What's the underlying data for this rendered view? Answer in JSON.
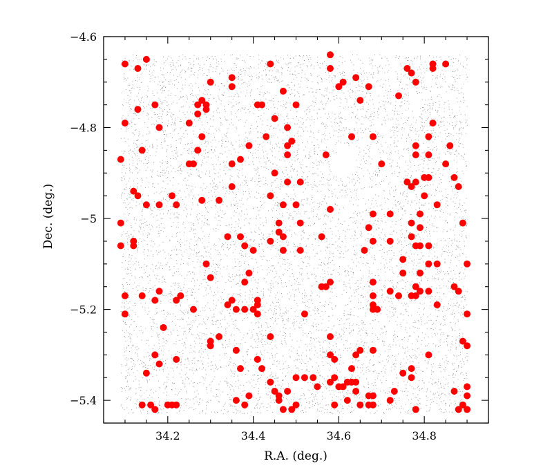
{
  "chart_data": {
    "type": "scatter",
    "xlabel": "R.A. (deg.)",
    "ylabel": "Dec. (deg.)",
    "xlim": [
      34.05,
      34.95
    ],
    "ylim": [
      -5.45,
      -4.6
    ],
    "x_ticks": [
      34.2,
      34.4,
      34.6,
      34.8
    ],
    "x_tick_labels": [
      "34.2",
      "34.4",
      "34.6",
      "34.8"
    ],
    "y_ticks": [
      -4.6,
      -4.8,
      -5,
      -5.2,
      -5.4
    ],
    "y_tick_labels": [
      "−4.6",
      "−4.8",
      "−5",
      "−5.2",
      "−5.4"
    ],
    "background_field": {
      "ra_range": [
        34.09,
        34.9
      ],
      "dec_range": [
        -5.43,
        -4.64
      ],
      "color": "#888888",
      "hole_center": [
        34.61,
        -4.88
      ]
    },
    "series": [
      {
        "color": "#ff0000",
        "points": [
          [
            34.1,
            -4.66
          ],
          [
            34.13,
            -4.67
          ],
          [
            34.15,
            -4.65
          ],
          [
            34.13,
            -4.76
          ],
          [
            34.17,
            -4.75
          ],
          [
            34.18,
            -4.8
          ],
          [
            34.1,
            -4.79
          ],
          [
            34.09,
            -4.87
          ],
          [
            34.14,
            -4.85
          ],
          [
            34.12,
            -4.94
          ],
          [
            34.13,
            -4.95
          ],
          [
            34.15,
            -4.97
          ],
          [
            34.18,
            -4.97
          ],
          [
            34.21,
            -4.95
          ],
          [
            34.22,
            -4.97
          ],
          [
            34.09,
            -5.01
          ],
          [
            34.09,
            -5.06
          ],
          [
            34.12,
            -5.05
          ],
          [
            34.12,
            -5.06
          ],
          [
            34.28,
            -4.74
          ],
          [
            34.29,
            -4.75
          ],
          [
            34.27,
            -4.75
          ],
          [
            34.27,
            -4.77
          ],
          [
            34.29,
            -4.76
          ],
          [
            34.25,
            -4.79
          ],
          [
            34.28,
            -4.82
          ],
          [
            34.27,
            -4.85
          ],
          [
            34.25,
            -4.88
          ],
          [
            34.26,
            -4.88
          ],
          [
            34.28,
            -4.96
          ],
          [
            34.32,
            -4.96
          ],
          [
            34.3,
            -4.7
          ],
          [
            34.35,
            -4.69
          ],
          [
            34.35,
            -4.71
          ],
          [
            34.44,
            -4.66
          ],
          [
            34.42,
            -4.75
          ],
          [
            34.41,
            -4.75
          ],
          [
            34.47,
            -4.72
          ],
          [
            34.5,
            -4.75
          ],
          [
            34.45,
            -4.78
          ],
          [
            34.48,
            -4.8
          ],
          [
            34.49,
            -4.83
          ],
          [
            34.48,
            -4.84
          ],
          [
            34.43,
            -4.82
          ],
          [
            34.39,
            -4.84
          ],
          [
            34.37,
            -4.87
          ],
          [
            34.35,
            -4.88
          ],
          [
            34.48,
            -4.86
          ],
          [
            34.45,
            -4.9
          ],
          [
            34.48,
            -4.92
          ],
          [
            34.51,
            -4.92
          ],
          [
            34.35,
            -4.93
          ],
          [
            34.44,
            -4.95
          ],
          [
            34.47,
            -4.97
          ],
          [
            34.5,
            -4.97
          ],
          [
            34.51,
            -5.01
          ],
          [
            34.46,
            -5.01
          ],
          [
            34.46,
            -5.03
          ],
          [
            34.44,
            -5.05
          ],
          [
            34.47,
            -5.04
          ],
          [
            34.47,
            -5.07
          ],
          [
            34.34,
            -5.04
          ],
          [
            34.37,
            -5.04
          ],
          [
            34.38,
            -5.06
          ],
          [
            34.4,
            -5.07
          ],
          [
            34.51,
            -5.07
          ],
          [
            34.56,
            -5.04
          ],
          [
            34.58,
            -4.98
          ],
          [
            34.57,
            -4.86
          ],
          [
            34.58,
            -4.64
          ],
          [
            34.58,
            -4.67
          ],
          [
            34.6,
            -4.71
          ],
          [
            34.61,
            -4.7
          ],
          [
            34.64,
            -4.69
          ],
          [
            34.67,
            -4.71
          ],
          [
            34.65,
            -4.74
          ],
          [
            34.63,
            -4.82
          ],
          [
            34.68,
            -4.82
          ],
          [
            34.7,
            -4.88
          ],
          [
            34.68,
            -4.99
          ],
          [
            34.67,
            -5.02
          ],
          [
            34.68,
            -5.05
          ],
          [
            34.66,
            -5.07
          ],
          [
            34.72,
            -4.99
          ],
          [
            34.72,
            -5.05
          ],
          [
            34.74,
            -4.73
          ],
          [
            34.76,
            -4.67
          ],
          [
            34.77,
            -4.68
          ],
          [
            34.78,
            -4.7
          ],
          [
            34.78,
            -4.84
          ],
          [
            34.78,
            -4.86
          ],
          [
            34.81,
            -4.82
          ],
          [
            34.81,
            -4.86
          ],
          [
            34.8,
            -4.91
          ],
          [
            34.81,
            -4.91
          ],
          [
            34.76,
            -4.92
          ],
          [
            34.77,
            -4.93
          ],
          [
            34.78,
            -4.92
          ],
          [
            34.8,
            -4.95
          ],
          [
            34.79,
            -4.99
          ],
          [
            34.77,
            -5.01
          ],
          [
            34.79,
            -5.02
          ],
          [
            34.77,
            -5.04
          ],
          [
            34.78,
            -5.06
          ],
          [
            34.79,
            -5.06
          ],
          [
            34.81,
            -5.06
          ],
          [
            34.82,
            -4.66
          ],
          [
            34.82,
            -4.67
          ],
          [
            34.85,
            -4.66
          ],
          [
            34.82,
            -4.79
          ],
          [
            34.86,
            -4.84
          ],
          [
            34.85,
            -4.88
          ],
          [
            34.87,
            -4.91
          ],
          [
            34.83,
            -4.97
          ],
          [
            34.88,
            -4.93
          ],
          [
            34.89,
            -5.01
          ],
          [
            34.81,
            -5.1
          ],
          [
            34.83,
            -5.1
          ],
          [
            34.9,
            -5.1
          ],
          [
            34.79,
            -5.12
          ],
          [
            34.78,
            -5.15
          ],
          [
            34.79,
            -5.16
          ],
          [
            34.77,
            -5.17
          ],
          [
            34.78,
            -5.17
          ],
          [
            34.81,
            -5.16
          ],
          [
            34.83,
            -5.19
          ],
          [
            34.87,
            -5.15
          ],
          [
            34.88,
            -5.16
          ],
          [
            34.9,
            -5.21
          ],
          [
            34.68,
            -5.14
          ],
          [
            34.68,
            -5.17
          ],
          [
            34.72,
            -5.16
          ],
          [
            34.74,
            -5.17
          ],
          [
            34.69,
            -5.2
          ],
          [
            34.68,
            -5.2
          ],
          [
            34.68,
            -5.19
          ],
          [
            34.75,
            -5.09
          ],
          [
            34.75,
            -5.12
          ],
          [
            34.1,
            -5.17
          ],
          [
            34.1,
            -5.21
          ],
          [
            34.14,
            -5.17
          ],
          [
            34.17,
            -5.18
          ],
          [
            34.18,
            -5.16
          ],
          [
            34.22,
            -5.18
          ],
          [
            34.23,
            -5.17
          ],
          [
            34.26,
            -5.2
          ],
          [
            34.19,
            -5.24
          ],
          [
            34.29,
            -5.1
          ],
          [
            34.3,
            -5.13
          ],
          [
            34.35,
            -5.18
          ],
          [
            34.34,
            -5.19
          ],
          [
            34.36,
            -5.2
          ],
          [
            34.38,
            -5.2
          ],
          [
            34.38,
            -5.14
          ],
          [
            34.39,
            -5.12
          ],
          [
            34.41,
            -5.18
          ],
          [
            34.41,
            -5.19
          ],
          [
            34.41,
            -5.21
          ],
          [
            34.4,
            -5.2
          ],
          [
            34.52,
            -5.21
          ],
          [
            34.56,
            -5.15
          ],
          [
            34.57,
            -5.15
          ],
          [
            34.58,
            -5.14
          ],
          [
            34.58,
            -5.26
          ],
          [
            34.58,
            -5.3
          ],
          [
            34.59,
            -5.31
          ],
          [
            34.3,
            -5.27
          ],
          [
            34.3,
            -5.28
          ],
          [
            34.32,
            -5.26
          ],
          [
            34.36,
            -5.29
          ],
          [
            34.37,
            -5.33
          ],
          [
            34.41,
            -5.31
          ],
          [
            34.42,
            -5.33
          ],
          [
            34.44,
            -5.26
          ],
          [
            34.44,
            -5.36
          ],
          [
            34.45,
            -5.38
          ],
          [
            34.46,
            -5.39
          ],
          [
            34.46,
            -5.4
          ],
          [
            34.47,
            -5.42
          ],
          [
            34.49,
            -5.42
          ],
          [
            34.5,
            -5.41
          ],
          [
            34.48,
            -5.38
          ],
          [
            34.5,
            -5.35
          ],
          [
            34.52,
            -5.35
          ],
          [
            34.54,
            -5.35
          ],
          [
            34.55,
            -5.37
          ],
          [
            34.36,
            -5.4
          ],
          [
            34.39,
            -5.39
          ],
          [
            34.38,
            -5.41
          ],
          [
            34.17,
            -5.3
          ],
          [
            34.18,
            -5.32
          ],
          [
            34.15,
            -5.34
          ],
          [
            34.22,
            -5.31
          ],
          [
            34.14,
            -5.41
          ],
          [
            34.16,
            -5.41
          ],
          [
            34.17,
            -5.42
          ],
          [
            34.2,
            -5.41
          ],
          [
            34.21,
            -5.41
          ],
          [
            34.22,
            -5.41
          ],
          [
            34.58,
            -5.36
          ],
          [
            34.59,
            -5.35
          ],
          [
            34.6,
            -5.37
          ],
          [
            34.61,
            -5.37
          ],
          [
            34.62,
            -5.36
          ],
          [
            34.63,
            -5.36
          ],
          [
            34.63,
            -5.33
          ],
          [
            34.64,
            -5.3
          ],
          [
            34.65,
            -5.29
          ],
          [
            34.64,
            -5.36
          ],
          [
            34.64,
            -5.38
          ],
          [
            34.62,
            -5.4
          ],
          [
            34.59,
            -5.41
          ],
          [
            34.65,
            -5.41
          ],
          [
            34.67,
            -5.39
          ],
          [
            34.68,
            -5.39
          ],
          [
            34.68,
            -5.41
          ],
          [
            34.67,
            -5.41
          ],
          [
            34.68,
            -5.29
          ],
          [
            34.72,
            -5.4
          ],
          [
            34.73,
            -5.38
          ],
          [
            34.75,
            -5.34
          ],
          [
            34.77,
            -5.33
          ],
          [
            34.77,
            -5.35
          ],
          [
            34.78,
            -5.42
          ],
          [
            34.81,
            -5.3
          ],
          [
            34.87,
            -5.38
          ],
          [
            34.88,
            -5.42
          ],
          [
            34.89,
            -5.41
          ],
          [
            34.9,
            -5.42
          ],
          [
            34.9,
            -5.37
          ],
          [
            34.9,
            -5.39
          ],
          [
            34.89,
            -5.27
          ],
          [
            34.9,
            -5.28
          ]
        ]
      }
    ]
  }
}
